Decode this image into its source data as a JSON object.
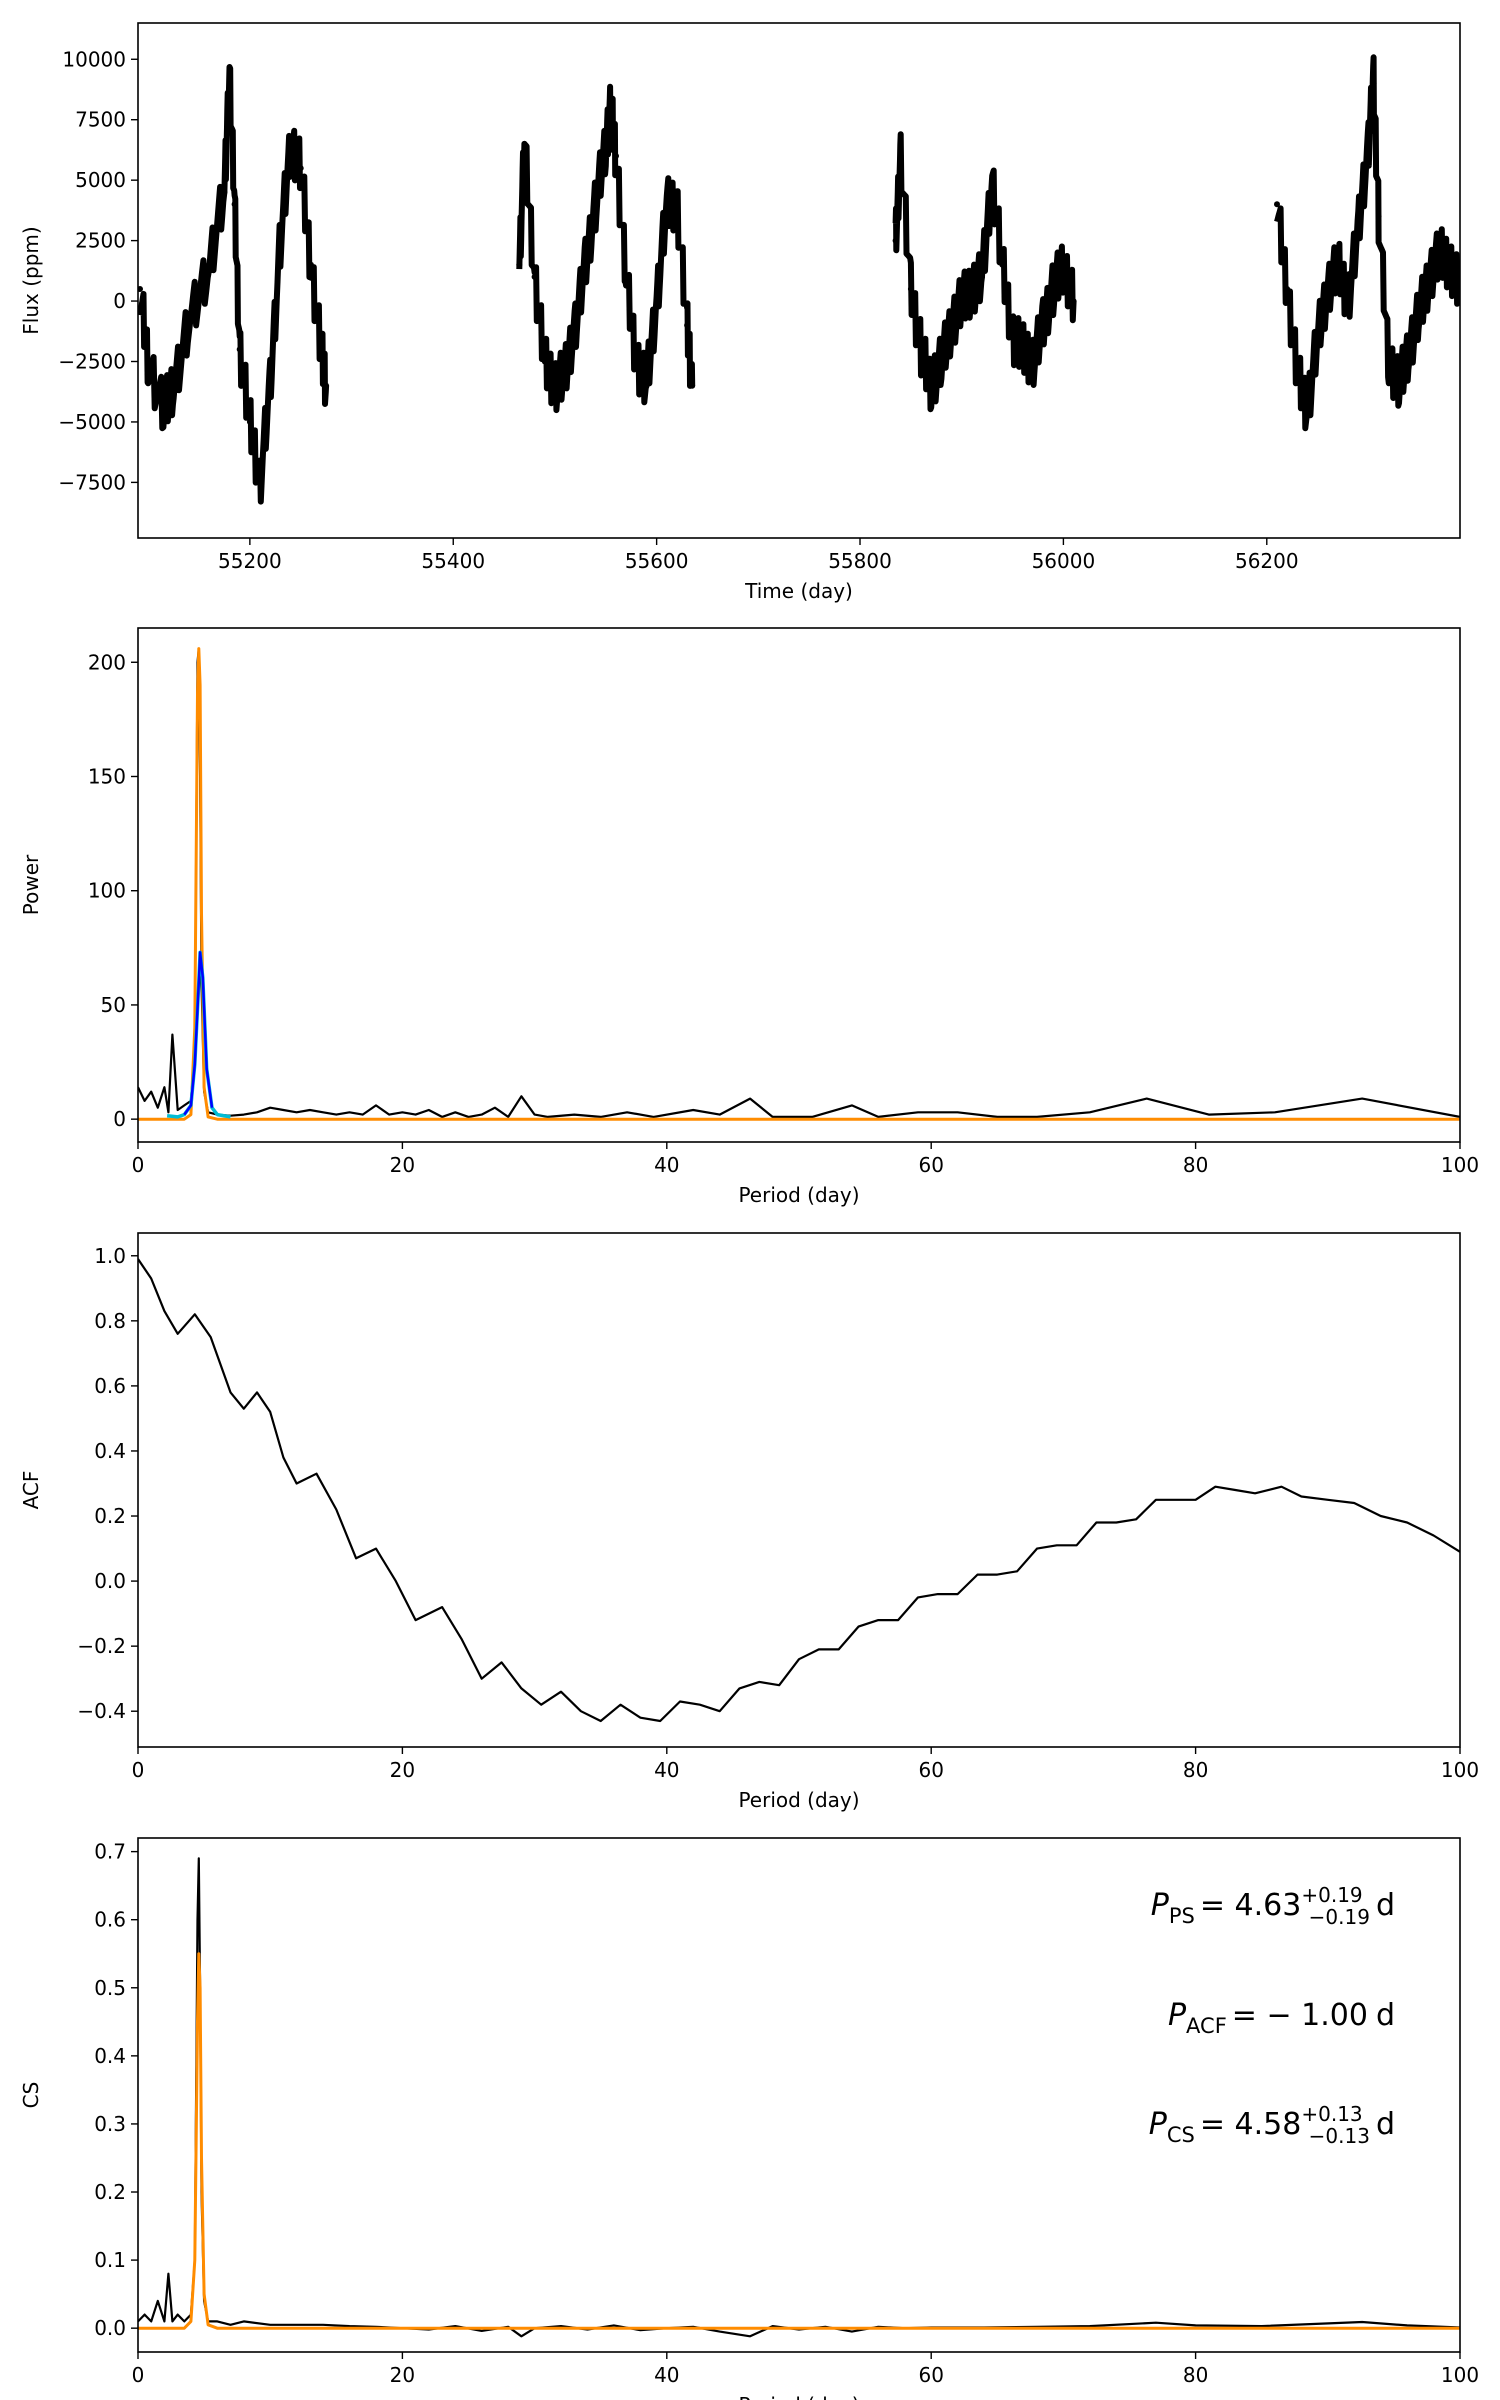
{
  "chart_data": [
    {
      "type": "scatter",
      "xlabel": "Time (day)",
      "ylabel": "Flux (ppm)",
      "xlim": [
        55090,
        56390
      ],
      "ylim": [
        -9800,
        11500
      ],
      "xticks": [
        55200,
        55400,
        55600,
        55800,
        56000,
        56200
      ],
      "yticks": [
        -7500,
        -5000,
        -2500,
        0,
        2500,
        5000,
        7500,
        10000
      ],
      "ytick_labels": [
        "−7500",
        "−5000",
        "−2500",
        "0",
        "2500",
        "5000",
        "7500",
        "10000"
      ],
      "grid": false,
      "segments": [
        {
          "x": [
            55092,
            55100,
            55115,
            55125,
            55140,
            55160,
            55175,
            55180,
            55185,
            55190,
            55200,
            55210,
            55220,
            55230,
            55240,
            55250,
            55260,
            55270,
            55275
          ],
          "y": [
            500,
            -2500,
            -4500,
            -3500,
            -1000,
            1500,
            4500,
            9500,
            4000,
            -2000,
            -5000,
            -7500,
            -3500,
            2500,
            6500,
            5500,
            1500,
            -2000,
            -3500
          ]
        },
        {
          "x": [
            55465,
            55470,
            55480,
            55490,
            55500,
            55510,
            55520,
            55530,
            55540,
            55550,
            55555,
            55560,
            55570,
            55580,
            55590,
            55600,
            55610,
            55620,
            55630,
            55635
          ],
          "y": [
            1500,
            6500,
            1000,
            -2500,
            -3500,
            -3000,
            -1000,
            1500,
            4000,
            6500,
            8000,
            6000,
            1000,
            -2500,
            -3500,
            0,
            4000,
            4000,
            -1000,
            -3500
          ]
        },
        {
          "x": [
            55835,
            55840,
            55850,
            55860,
            55870,
            55880,
            55890,
            55900,
            55910,
            55920,
            55930,
            55940,
            55950,
            55960,
            55970,
            55980,
            55990,
            56000,
            56010
          ],
          "y": [
            2500,
            6000,
            500,
            -2000,
            -3500,
            -2500,
            -1000,
            0,
            500,
            1000,
            5000,
            1500,
            -1500,
            -2000,
            -2500,
            -1000,
            500,
            1500,
            0
          ]
        },
        {
          "x": [
            56210,
            56220,
            56230,
            56240,
            56250,
            56260,
            56270,
            56280,
            56290,
            56300,
            56305,
            56310,
            56320,
            56330,
            56340,
            56350,
            56360,
            56370,
            56380,
            56390
          ],
          "y": [
            4000,
            500,
            -3000,
            -4500,
            -1500,
            500,
            1500,
            0,
            3000,
            6500,
            9000,
            3500,
            -2500,
            -3500,
            -2000,
            -500,
            1000,
            2000,
            1500,
            500
          ]
        }
      ]
    },
    {
      "type": "line",
      "xlabel": "Period (day)",
      "ylabel": "Power",
      "xlim": [
        0,
        100
      ],
      "ylim": [
        -10,
        215
      ],
      "xticks": [
        0,
        20,
        40,
        60,
        80,
        100
      ],
      "yticks": [
        0,
        50,
        100,
        150,
        200
      ],
      "grid": false,
      "colors": {
        "data": "#000000",
        "fit": "#ff8c00",
        "peak_a": "#00bcd4",
        "peak_b": "#0000ff"
      },
      "series": [
        {
          "x": [
            0,
            0.5,
            1,
            1.5,
            2,
            2.3,
            2.6,
            3,
            3.5,
            4,
            4.3,
            4.5,
            4.6,
            4.7,
            4.8,
            5,
            5.3,
            6,
            7,
            8,
            9,
            10,
            11,
            12,
            13,
            14,
            15,
            16,
            17,
            18,
            19,
            20,
            21,
            22,
            23,
            24,
            25,
            26,
            27,
            28,
            29,
            30,
            31,
            33,
            35,
            37,
            39,
            42,
            44,
            46.3,
            48,
            51,
            54,
            56,
            59,
            62,
            65,
            68,
            72,
            76.3,
            81,
            86,
            92.6,
            100
          ],
          "y": [
            14,
            8,
            12,
            5,
            14,
            3,
            37,
            4,
            6,
            8,
            30,
            200,
            206,
            150,
            60,
            12,
            3,
            2,
            1.5,
            2,
            3,
            5,
            4,
            3,
            4,
            3,
            2,
            3,
            2,
            6,
            2,
            3,
            2,
            4,
            1,
            3,
            1,
            2,
            5,
            1,
            10,
            2,
            1,
            2,
            1,
            3,
            1,
            4,
            2,
            9,
            1,
            1,
            6,
            1,
            3,
            3,
            1,
            1,
            3,
            9,
            2,
            3,
            9,
            1
          ]
        },
        {
          "x": [
            0,
            3.5,
            4,
            4.3,
            4.5,
            4.6,
            4.7,
            4.8,
            5,
            5.3,
            6,
            100
          ],
          "y": [
            0,
            0,
            2,
            40,
            186,
            206,
            190,
            90,
            14,
            1,
            0,
            0
          ]
        },
        {
          "x": [
            2.2,
            3,
            3.5,
            4,
            4.3,
            4.6,
            4.7,
            4.9,
            5.2,
            5.6,
            6,
            7
          ],
          "y": [
            1.5,
            1,
            2,
            6,
            24,
            60,
            73,
            62,
            22,
            5,
            2,
            1
          ]
        },
        {
          "x": [
            3.5,
            4,
            4.3,
            4.6,
            4.7,
            4.9,
            5.2,
            5.6
          ],
          "y": [
            2,
            6,
            24,
            60,
            73,
            62,
            22,
            5
          ]
        }
      ]
    },
    {
      "type": "line",
      "xlabel": "Period (day)",
      "ylabel": "ACF",
      "xlim": [
        0,
        100
      ],
      "ylim": [
        -0.51,
        1.07
      ],
      "xticks": [
        0,
        20,
        40,
        60,
        80,
        100
      ],
      "yticks": [
        -0.4,
        -0.2,
        0.0,
        0.2,
        0.4,
        0.6,
        0.8,
        1.0
      ],
      "ytick_labels": [
        "−0.4",
        "−0.2",
        "0.0",
        "0.2",
        "0.4",
        "0.6",
        "0.8",
        "1.0"
      ],
      "grid": false,
      "series": [
        {
          "x": [
            0,
            1,
            2,
            3,
            4.3,
            5.5,
            7,
            8,
            9,
            10,
            11,
            12,
            13.5,
            15,
            16.5,
            18,
            19.5,
            21,
            23,
            24.5,
            26,
            27.5,
            29,
            30.5,
            32,
            33.5,
            35,
            36.5,
            38,
            39.5,
            41,
            42.5,
            44,
            45.5,
            47,
            48.5,
            50,
            51.5,
            53,
            54.5,
            56,
            57.5,
            59,
            60.5,
            62,
            63.5,
            65,
            66.5,
            68,
            69.5,
            71,
            72.5,
            74,
            75.5,
            77,
            78.5,
            80,
            81.5,
            83,
            84.5,
            86.5,
            88,
            90,
            92,
            94,
            96,
            98,
            100
          ],
          "y": [
            0.99,
            0.93,
            0.83,
            0.76,
            0.82,
            0.75,
            0.58,
            0.53,
            0.58,
            0.52,
            0.38,
            0.3,
            0.33,
            0.22,
            0.07,
            0.1,
            0.0,
            -0.12,
            -0.08,
            -0.18,
            -0.3,
            -0.25,
            -0.33,
            -0.38,
            -0.34,
            -0.4,
            -0.43,
            -0.38,
            -0.42,
            -0.43,
            -0.37,
            -0.38,
            -0.4,
            -0.33,
            -0.31,
            -0.32,
            -0.24,
            -0.21,
            -0.21,
            -0.14,
            -0.12,
            -0.12,
            -0.05,
            -0.04,
            -0.04,
            0.02,
            0.02,
            0.03,
            0.1,
            0.11,
            0.11,
            0.18,
            0.18,
            0.19,
            0.25,
            0.25,
            0.25,
            0.29,
            0.28,
            0.27,
            0.29,
            0.26,
            0.25,
            0.24,
            0.2,
            0.18,
            0.14,
            0.09
          ]
        }
      ]
    },
    {
      "type": "line",
      "xlabel": "Period (day)",
      "ylabel": "CS",
      "xlim": [
        0,
        100
      ],
      "ylim": [
        -0.035,
        0.72
      ],
      "xticks": [
        0,
        20,
        40,
        60,
        80,
        100
      ],
      "yticks": [
        0.0,
        0.1,
        0.2,
        0.3,
        0.4,
        0.5,
        0.6,
        0.7
      ],
      "grid": false,
      "colors": {
        "data": "#000000",
        "fit": "#ff8c00"
      },
      "series": [
        {
          "x": [
            0,
            0.5,
            1,
            1.5,
            2,
            2.3,
            2.6,
            3,
            3.5,
            4,
            4.3,
            4.5,
            4.6,
            4.7,
            4.8,
            5,
            5.3,
            6,
            7,
            8,
            10,
            12,
            14,
            16,
            18,
            20,
            22,
            24,
            26,
            28,
            29,
            30,
            32,
            34,
            36,
            38,
            40,
            42,
            44,
            46.3,
            48,
            50,
            52,
            54,
            56,
            58,
            60,
            64,
            68,
            72,
            77,
            80,
            85,
            92.6,
            96,
            100
          ],
          "y": [
            0.01,
            0.02,
            0.01,
            0.04,
            0.01,
            0.08,
            0.01,
            0.02,
            0.01,
            0.02,
            0.1,
            0.6,
            0.69,
            0.5,
            0.2,
            0.04,
            0.01,
            0.01,
            0.005,
            0.01,
            0.005,
            0.005,
            0.005,
            0.003,
            0.002,
            0.0,
            -0.002,
            0.003,
            -0.004,
            0.002,
            -0.012,
            0.0,
            0.003,
            -0.002,
            0.004,
            -0.003,
            0.0,
            0.002,
            -0.005,
            -0.012,
            0.003,
            -0.002,
            0.002,
            -0.005,
            0.002,
            0.0,
            0.001,
            0.001,
            0.002,
            0.003,
            0.008,
            0.004,
            0.003,
            0.009,
            0.004,
            0.001
          ]
        },
        {
          "x": [
            0,
            3.5,
            4,
            4.3,
            4.5,
            4.6,
            4.7,
            4.8,
            5,
            5.3,
            6,
            100
          ],
          "y": [
            0.0,
            0.0,
            0.01,
            0.1,
            0.45,
            0.55,
            0.5,
            0.25,
            0.05,
            0.005,
            0.0,
            0.0
          ]
        }
      ]
    }
  ],
  "annotations": [
    {
      "symbol": "P",
      "sub": "PS",
      "text": "= 4.63",
      "sup": "+0.19",
      "sub2": "−0.19",
      "unit": "d"
    },
    {
      "symbol": "P",
      "sub": "ACF",
      "text": "= − 1.00",
      "sup": "",
      "sub2": "",
      "unit": "d"
    },
    {
      "symbol": "P",
      "sub": "CS",
      "text": "= 4.58",
      "sup": "+0.13",
      "sub2": "−0.13",
      "unit": "d"
    }
  ]
}
